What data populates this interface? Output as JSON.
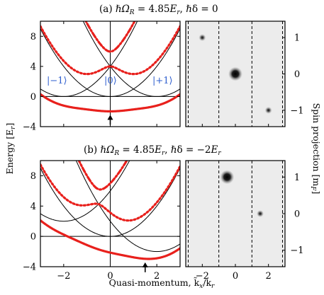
{
  "colors": {
    "band_red": "#e8201c",
    "free_black": "#000000",
    "ket_blue": "#2f5fcf",
    "axis": "#000000"
  },
  "panel_a": {
    "title": "(a) ℏΩ_R = 4.85E_r, ℏδ = 0",
    "title_parts": {
      "prefix": "(a) ",
      "hbar": "ℏΩ",
      "sub": "R",
      "mid": " = 4.85",
      "E": "E",
      "Esub": "r",
      "rest": ", ℏδ = 0"
    },
    "ket_labels": [
      "|−1⟩",
      "|0⟩",
      "|+1⟩"
    ],
    "arrow_at_k": 0,
    "image_spots": [
      {
        "mF": 1,
        "kx": -2.0,
        "intensity": "weak"
      },
      {
        "mF": 0,
        "kx": 0.0,
        "intensity": "strong"
      },
      {
        "mF": -1,
        "kx": 2.0,
        "intensity": "weak"
      }
    ]
  },
  "panel_b": {
    "title": "(b) ℏΩ_R = 4.85E_r, ℏδ = −2E_r",
    "title_parts": {
      "prefix": "(b) ",
      "hbar": "ℏΩ",
      "sub": "R",
      "mid": " = 4.85",
      "E": "E",
      "Esub": "r",
      "rest": ", ℏδ = −2",
      "E2": "E",
      "E2sub": "r"
    },
    "arrow_at_k": 1.5,
    "image_spots": [
      {
        "mF": 1,
        "kx": -0.5,
        "intensity": "strong"
      },
      {
        "mF": 0,
        "kx": 1.5,
        "intensity": "weak"
      }
    ]
  },
  "axes": {
    "ylabel": "Energy [E_r]",
    "ylabel_text": "Energy [E",
    "ylabel_sub": "r",
    "ylabel_end": "]",
    "xlabel_text": "Quasi-momentum, k̃",
    "xlabel_sub1": "x",
    "xlabel_mid": "/k",
    "xlabel_sub2": "r",
    "right_label_text": "Spin projection [m",
    "right_label_sub": "F",
    "right_label_end": "]",
    "energy_ticks": [
      "8",
      "4",
      "0",
      "−4"
    ],
    "energy_tick_values": [
      8,
      4,
      0,
      -4
    ],
    "k_ticks": [
      "−2",
      "0",
      "2"
    ],
    "k_tick_values": [
      -2,
      0,
      2
    ],
    "mF_ticks": [
      "1",
      "0",
      "−1"
    ],
    "mF_tick_values": [
      1,
      0,
      -1
    ],
    "xlim": [
      -3,
      3
    ],
    "ylim": [
      -4,
      10
    ]
  },
  "chart_data": [
    {
      "type": "line",
      "title": "(a) ℏΩ_R = 4.85E_r, ℏδ = 0",
      "xlabel": "Quasi-momentum, k̃_x/k_r",
      "ylabel": "Energy [E_r]",
      "xlim": [
        -3,
        3
      ],
      "ylim": [
        -4,
        10
      ],
      "params": {
        "Omega": 4.85,
        "delta": 0
      },
      "series": [
        {
          "name": "|−1⟩",
          "style": "thin-black"
        },
        {
          "name": "|0⟩",
          "style": "thin-black"
        },
        {
          "name": "|+1⟩",
          "style": "thin-black"
        },
        {
          "style": "thick-red-solid"
        },
        {
          "style": "thick-red-dotted"
        },
        {
          "style": "thick-red-dashdot"
        }
      ]
    },
    {
      "type": "line",
      "title": "(b) ℏΩ_R = 4.85E_r, ℏδ = −2E_r",
      "xlabel": "Quasi-momentum, k̃_x/k_r",
      "ylabel": "Energy [E_r]",
      "xlim": [
        -3,
        3
      ],
      "ylim": [
        -4,
        10
      ],
      "params": {
        "Omega": 4.85,
        "delta": -2
      },
      "series": [
        {
          "style": "thin-black"
        },
        {
          "style": "thin-black"
        },
        {
          "style": "thin-black"
        },
        {
          "style": "thick-red-solid"
        },
        {
          "style": "thick-red-dotted"
        },
        {
          "style": "thick-red-dashdot"
        }
      ]
    }
  ]
}
